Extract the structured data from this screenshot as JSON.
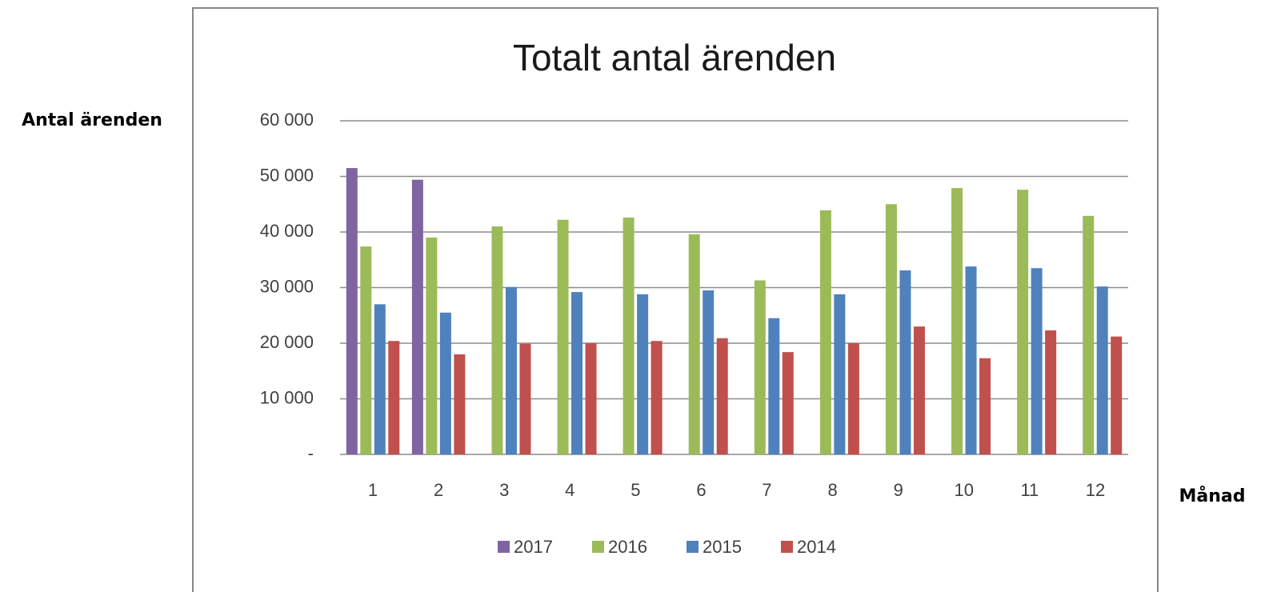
{
  "chart_data": {
    "type": "bar",
    "title": "Totalt antal ärenden",
    "y_label": "Antal ärenden",
    "x_label": "Månad",
    "categories": [
      "1",
      "2",
      "3",
      "4",
      "5",
      "6",
      "7",
      "8",
      "9",
      "10",
      "11",
      "12"
    ],
    "series": [
      {
        "name": "2017",
        "color": "#8064a2",
        "values": [
          51500,
          49400,
          null,
          null,
          null,
          null,
          null,
          null,
          null,
          null,
          null,
          null
        ]
      },
      {
        "name": "2016",
        "color": "#9bbb59",
        "values": [
          37400,
          39000,
          41000,
          42200,
          42600,
          39600,
          31300,
          43900,
          45000,
          47900,
          47600,
          42900
        ]
      },
      {
        "name": "2015",
        "color": "#4f81bd",
        "values": [
          27000,
          25500,
          30100,
          29200,
          28800,
          29500,
          24500,
          28800,
          33100,
          33800,
          33500,
          30200
        ]
      },
      {
        "name": "2014",
        "color": "#c0504d",
        "values": [
          20400,
          18000,
          19900,
          20000,
          20400,
          20900,
          18400,
          20000,
          23000,
          17300,
          22300,
          21200
        ]
      }
    ],
    "ylim": [
      0,
      60000
    ],
    "yticks": [
      {
        "value": 0,
        "label": "-"
      },
      {
        "value": 10000,
        "label": "10 000"
      },
      {
        "value": 20000,
        "label": "20 000"
      },
      {
        "value": 30000,
        "label": "30 000"
      },
      {
        "value": 40000,
        "label": "40 000"
      },
      {
        "value": 50000,
        "label": "50 000"
      },
      {
        "value": 60000,
        "label": "60 000"
      }
    ],
    "grid": true,
    "legend": "bottom"
  }
}
